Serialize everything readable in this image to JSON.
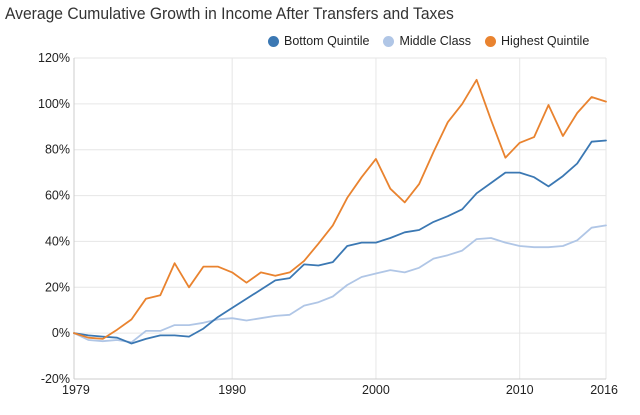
{
  "chart_data": {
    "type": "line",
    "title": "Average Cumulative Growth in Income After Transfers and Taxes",
    "xlabel": "",
    "ylabel": "",
    "xlim": [
      1979,
      2016
    ],
    "ylim": [
      -20,
      120
    ],
    "y_ticks": [
      -20,
      0,
      20,
      40,
      60,
      80,
      100,
      120
    ],
    "y_tick_labels": [
      "-20%",
      "0%",
      "20%",
      "40%",
      "60%",
      "80%",
      "100%",
      "120%"
    ],
    "x_ticks": [
      1979,
      1990,
      2000,
      2010,
      2016
    ],
    "x_tick_labels": [
      "1979",
      "1990",
      "2000",
      "2010",
      "2016"
    ],
    "legend_position": "top-right",
    "grid": true,
    "x": [
      1979,
      1980,
      1981,
      1982,
      1983,
      1984,
      1985,
      1986,
      1987,
      1988,
      1989,
      1990,
      1991,
      1992,
      1993,
      1994,
      1995,
      1996,
      1997,
      1998,
      1999,
      2000,
      2001,
      2002,
      2003,
      2004,
      2005,
      2006,
      2007,
      2008,
      2009,
      2010,
      2011,
      2012,
      2013,
      2014,
      2015,
      2016
    ],
    "series": [
      {
        "name": "Bottom Quintile",
        "color": "#3b78b3",
        "values": [
          0,
          -1,
          -1.5,
          -2,
          -4.5,
          -2.5,
          -1,
          -1,
          -1.5,
          2,
          7,
          11,
          15,
          19,
          23,
          24,
          30,
          29.5,
          31,
          38,
          39.5,
          39.5,
          41.5,
          44,
          45,
          48.5,
          51,
          54,
          61,
          65.5,
          70,
          70,
          68,
          64,
          68.5,
          74,
          83.5,
          84
        ]
      },
      {
        "name": "Middle Class",
        "color": "#b0c6e6",
        "values": [
          0,
          -3,
          -3.5,
          -3,
          -4,
          1,
          1,
          3.5,
          3.5,
          4.5,
          6,
          6.5,
          5.5,
          6.5,
          7.5,
          8,
          12,
          13.5,
          16,
          21,
          24.5,
          26,
          27.5,
          26.5,
          28.5,
          32.5,
          34,
          36,
          41,
          41.5,
          39.5,
          38,
          37.5,
          37.5,
          38,
          40.5,
          46,
          47
        ]
      },
      {
        "name": "Highest Quintile",
        "color": "#e9832f",
        "values": [
          0,
          -2,
          -2.5,
          1.5,
          6,
          15,
          16.5,
          30.5,
          20,
          29,
          29,
          26.5,
          22,
          26.5,
          25,
          26.5,
          31.5,
          39,
          47,
          59,
          68,
          76,
          63,
          57,
          65,
          79,
          92,
          100,
          110.5,
          93,
          76.5,
          83,
          85.5,
          99.5,
          86,
          96,
          103,
          101
        ]
      }
    ]
  }
}
